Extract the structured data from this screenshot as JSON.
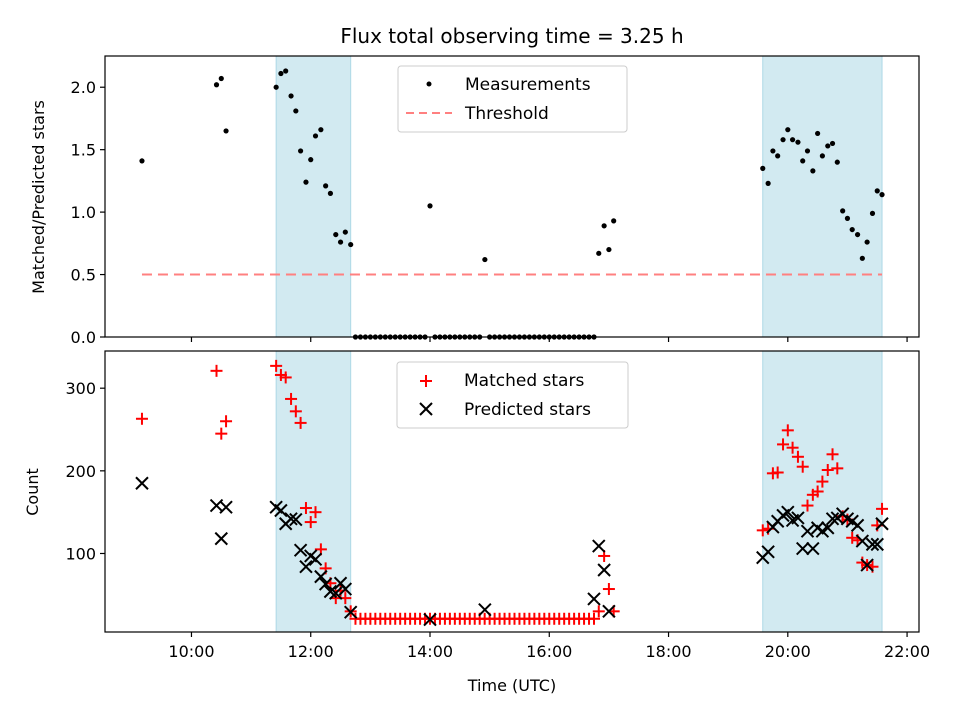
{
  "chart_data": [
    {
      "type": "scatter",
      "title": "Flux total observing time = 3.25 h",
      "xlabel": "",
      "ylabel": "Matched/Predicted stars",
      "xlim_hours": [
        8.55,
        22.2
      ],
      "ylim": [
        0,
        2.25
      ],
      "y_ticks": [
        0.0,
        0.5,
        1.0,
        1.5,
        2.0
      ],
      "y_tick_labels": [
        "0.0",
        "0.5",
        "1.0",
        "1.5",
        "2.0"
      ],
      "shaded_intervals_hours": [
        [
          11.42,
          12.67
        ],
        [
          19.58,
          21.58
        ]
      ],
      "shade_color": "#add8e6",
      "legend_position": "upper center",
      "legend": [
        "Measurements",
        "Threshold"
      ],
      "threshold": {
        "name": "Threshold",
        "y": 0.5,
        "x_start": 9.17,
        "x_end": 21.58,
        "color": "#ff8080"
      },
      "series": [
        {
          "name": "Measurements",
          "color": "#000000",
          "x": [
            9.17,
            10.42,
            10.5,
            10.58,
            11.42,
            11.5,
            11.58,
            11.67,
            11.75,
            11.83,
            11.92,
            12.0,
            12.08,
            12.17,
            12.25,
            12.33,
            12.42,
            12.5,
            12.58,
            12.67,
            14.0,
            14.92,
            16.83,
            16.92,
            17.0,
            17.08,
            19.58,
            19.67,
            19.75,
            19.83,
            19.92,
            20.0,
            20.08,
            20.17,
            20.25,
            20.33,
            20.42,
            20.5,
            20.58,
            20.67,
            20.75,
            20.83,
            20.92,
            21.0,
            21.08,
            21.17,
            21.25,
            21.33,
            21.42,
            21.5,
            21.58
          ],
          "y": [
            1.41,
            2.02,
            2.07,
            1.65,
            2.0,
            2.11,
            2.13,
            1.93,
            1.81,
            1.49,
            1.24,
            1.42,
            1.61,
            1.66,
            1.21,
            1.15,
            0.82,
            0.76,
            0.84,
            0.74,
            1.05,
            0.62,
            0.67,
            0.89,
            0.7,
            0.93,
            1.35,
            1.23,
            1.49,
            1.45,
            1.58,
            1.66,
            1.58,
            1.56,
            1.41,
            1.49,
            1.33,
            1.63,
            1.45,
            1.53,
            1.55,
            1.4,
            1.01,
            0.95,
            0.86,
            0.82,
            0.63,
            0.76,
            0.99,
            1.17,
            1.14
          ]
        }
      ],
      "zero_line_x_start": 12.75,
      "zero_line_x_end": 16.75
    },
    {
      "type": "scatter",
      "title": "",
      "xlabel": "Time (UTC)",
      "ylabel": "Count",
      "xlim_hours": [
        8.55,
        22.2
      ],
      "ylim": [
        5,
        345
      ],
      "y_ticks": [
        100,
        200,
        300
      ],
      "y_tick_labels": [
        "100",
        "200",
        "300"
      ],
      "x_ticks_hours": [
        10,
        12,
        14,
        16,
        18,
        20,
        22
      ],
      "x_tick_labels": [
        "10:00",
        "12:00",
        "14:00",
        "16:00",
        "18:00",
        "20:00",
        "22:00"
      ],
      "shaded_intervals_hours": [
        [
          11.42,
          12.67
        ],
        [
          19.58,
          21.58
        ]
      ],
      "legend_position": "upper center",
      "legend": [
        "Matched stars",
        "Predicted stars"
      ],
      "series": [
        {
          "name": "Matched stars",
          "marker": "plus",
          "color": "#ff0000",
          "x": [
            9.17,
            10.42,
            10.5,
            10.58,
            11.42,
            11.5,
            11.58,
            11.67,
            11.75,
            11.83,
            11.92,
            12.0,
            12.08,
            12.17,
            12.25,
            12.33,
            12.42,
            12.5,
            12.58,
            12.67,
            16.83,
            16.92,
            17.0,
            17.08,
            19.58,
            19.67,
            19.75,
            19.83,
            19.92,
            20.0,
            20.08,
            20.17,
            20.25,
            20.33,
            20.42,
            20.5,
            20.58,
            20.67,
            20.75,
            20.83,
            20.92,
            21.0,
            21.08,
            21.17,
            21.25,
            21.33,
            21.42,
            21.5,
            21.58
          ],
          "y": [
            263,
            321,
            245,
            260,
            327,
            316,
            313,
            287,
            272,
            258,
            155,
            138,
            150,
            105,
            82,
            64,
            46,
            55,
            46,
            30,
            30,
            97,
            57,
            30,
            128,
            130,
            197,
            198,
            232,
            249,
            228,
            217,
            205,
            158,
            171,
            175,
            187,
            201,
            220,
            203,
            145,
            141,
            119,
            116,
            89,
            86,
            84,
            134,
            154
          ]
        },
        {
          "name": "Predicted stars",
          "marker": "x",
          "color": "#000000",
          "x": [
            9.17,
            10.42,
            10.5,
            10.58,
            11.42,
            11.5,
            11.58,
            11.67,
            11.75,
            11.83,
            11.92,
            12.0,
            12.08,
            12.17,
            12.25,
            12.33,
            12.42,
            12.5,
            12.58,
            12.67,
            14.0,
            14.92,
            16.75,
            16.83,
            16.92,
            17.0,
            19.58,
            19.67,
            19.75,
            19.83,
            19.92,
            20.0,
            20.08,
            20.17,
            20.25,
            20.33,
            20.42,
            20.5,
            20.58,
            20.67,
            20.75,
            20.83,
            20.92,
            21.0,
            21.08,
            21.17,
            21.25,
            21.33,
            21.42,
            21.5,
            21.58
          ],
          "y": [
            185,
            158,
            118,
            156,
            156,
            152,
            136,
            142,
            141,
            104,
            84,
            97,
            93,
            72,
            63,
            54,
            52,
            64,
            57,
            29,
            20,
            32,
            45,
            109,
            80,
            30,
            95,
            102,
            132,
            139,
            146,
            150,
            140,
            143,
            106,
            127,
            106,
            131,
            127,
            131,
            142,
            143,
            148,
            142,
            139,
            134,
            115,
            86,
            111,
            111,
            136
          ]
        }
      ],
      "matched_floor_line": {
        "y": 21,
        "x_start": 12.75,
        "x_end": 16.75
      }
    }
  ]
}
